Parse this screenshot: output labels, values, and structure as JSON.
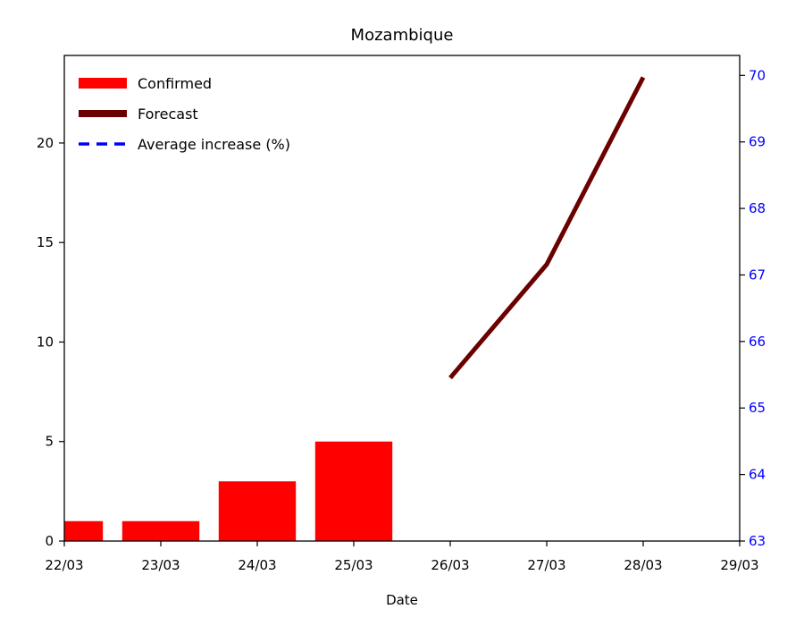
{
  "chart_data": {
    "type": "bar",
    "title": "Mozambique",
    "xlabel": "Date",
    "ylabel": "",
    "y2label": "",
    "x_ticks": [
      "22/03",
      "23/03",
      "24/03",
      "25/03",
      "26/03",
      "27/03",
      "28/03",
      "29/03"
    ],
    "ylim": [
      0,
      24.4
    ],
    "yticks": [
      0,
      5,
      10,
      15,
      20
    ],
    "y2lim": [
      63,
      70.3
    ],
    "y2ticks": [
      63,
      64,
      65,
      66,
      67,
      68,
      69,
      70
    ],
    "series": [
      {
        "name": "Confirmed",
        "type": "bar",
        "axis": "left",
        "color": "#ff0000",
        "x": [
          "22/03",
          "23/03",
          "24/03",
          "25/03"
        ],
        "values": [
          1,
          1,
          3,
          5
        ]
      },
      {
        "name": "Forecast",
        "type": "line",
        "axis": "left",
        "color": "#6b0000",
        "x": [
          "26/03",
          "27/03",
          "28/03"
        ],
        "values": [
          8.2,
          13.9,
          23.3
        ]
      },
      {
        "name": "Average increase (%)",
        "type": "line",
        "style": "dashed",
        "axis": "right",
        "color": "#0000ff",
        "x": [],
        "values": []
      }
    ],
    "legend": "top-left",
    "grid": false,
    "right_axis_color": "#0000ff"
  }
}
